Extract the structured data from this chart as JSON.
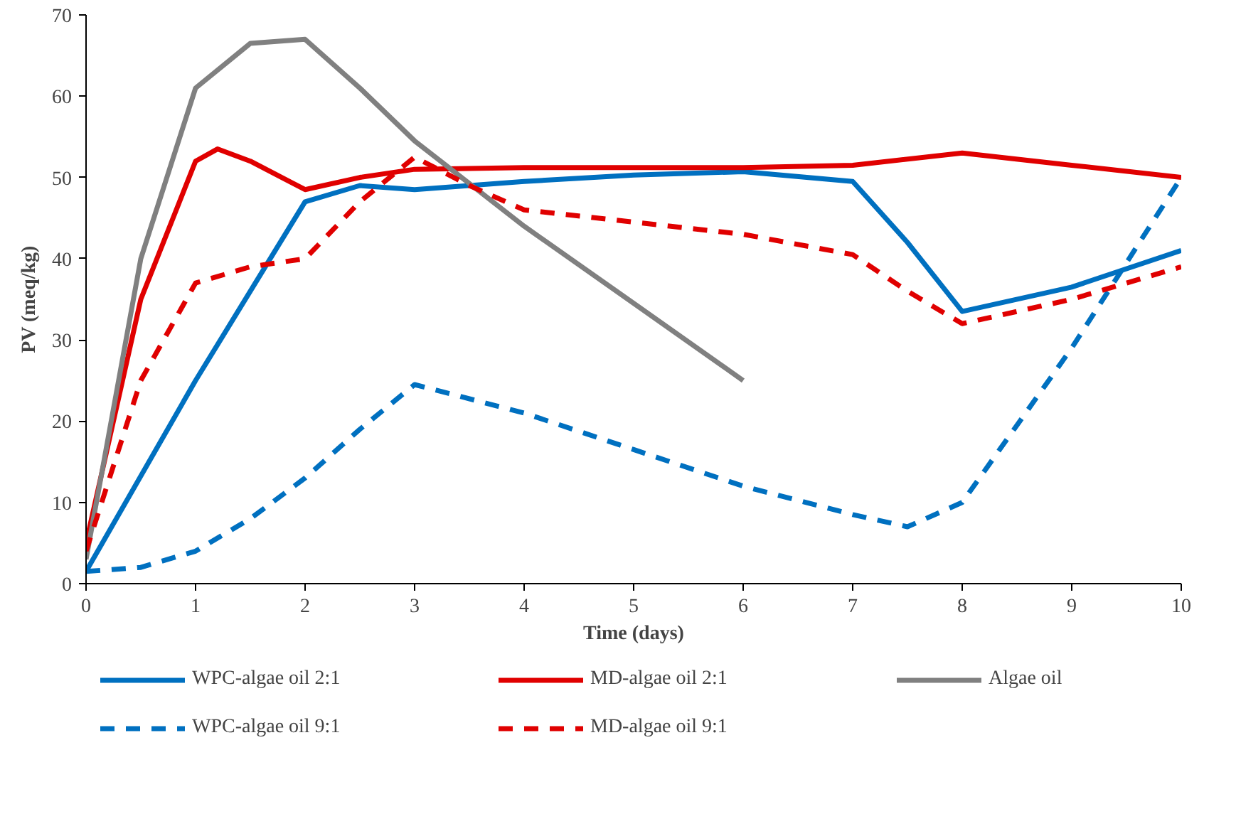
{
  "chart_data": {
    "type": "line",
    "xlabel": "Time (days)",
    "ylabel": "PV (meq/kg)",
    "xlim": [
      0,
      10
    ],
    "ylim": [
      0,
      70
    ],
    "xticks": [
      0,
      1,
      2,
      3,
      4,
      5,
      6,
      7,
      8,
      9,
      10
    ],
    "yticks": [
      0,
      10,
      20,
      30,
      40,
      50,
      60,
      70
    ],
    "grid": false,
    "legend": "bottom",
    "marker": "none",
    "series": [
      {
        "name": "WPC-algae oil 2:1",
        "color": "#0070c0",
        "line_style": "solid",
        "x": [
          0,
          1,
          2,
          2.5,
          3,
          4,
          5,
          6,
          7,
          7.5,
          8,
          9,
          10
        ],
        "values": [
          1.5,
          25,
          47,
          49,
          48.5,
          49.5,
          50.3,
          50.7,
          49.5,
          42,
          33.5,
          36.5,
          41
        ]
      },
      {
        "name": "MD-algae oil 2:1",
        "color": "#e00000",
        "line_style": "solid",
        "x": [
          0,
          0.5,
          1,
          1.2,
          1.5,
          2,
          2.5,
          3,
          4,
          5,
          6,
          7,
          8,
          9,
          10
        ],
        "values": [
          5,
          35,
          52,
          53.5,
          52,
          48.5,
          50,
          51,
          51.2,
          51.2,
          51.2,
          51.5,
          53,
          51.5,
          50
        ]
      },
      {
        "name": "Algae oil",
        "color": "#808080",
        "line_style": "solid",
        "x": [
          0,
          0.5,
          1,
          1.5,
          2,
          2.5,
          3,
          4,
          5,
          6
        ],
        "values": [
          3,
          40,
          61,
          66.5,
          67,
          61,
          54.5,
          44,
          34.5,
          25
        ]
      },
      {
        "name": "WPC-algae oil 9:1",
        "color": "#0070c0",
        "line_style": "dashed",
        "x": [
          0,
          0.5,
          1,
          1.5,
          2,
          2.5,
          3,
          4,
          5,
          6,
          7,
          7.5,
          8,
          9,
          10
        ],
        "values": [
          1.5,
          2,
          4,
          8,
          13,
          19,
          24.5,
          21,
          16.5,
          12,
          8.5,
          7,
          10,
          29,
          50
        ]
      },
      {
        "name": "MD-algae oil 9:1",
        "color": "#e00000",
        "line_style": "dashed",
        "x": [
          0,
          0.5,
          1,
          1.5,
          2,
          2.5,
          3,
          3.5,
          4,
          5,
          6,
          7,
          7.5,
          8,
          9,
          10
        ],
        "values": [
          4,
          25,
          37,
          39,
          40,
          47,
          52.5,
          49,
          46,
          44.5,
          43,
          40.5,
          36,
          32,
          35,
          39
        ]
      }
    ]
  }
}
